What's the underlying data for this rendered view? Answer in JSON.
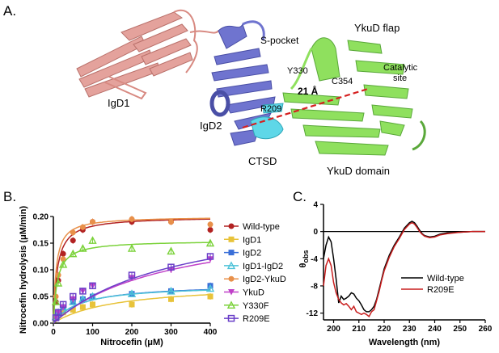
{
  "panelA": {
    "letter": "A.",
    "labels": {
      "igd1": "IgD1",
      "igd2": "IgD2",
      "ctsd": "CTSD",
      "spocket": "S-pocket",
      "ykud_flap": "YkuD flap",
      "ykud_domain": "YkuD domain",
      "y330": "Y330",
      "c354": "C354",
      "catalytic": "Catalytic",
      "site": "site",
      "r209": "R209",
      "distance": "21 Å"
    },
    "colors": {
      "igd1": "#e4a29c",
      "igd2": "#6f74cf",
      "ctsd": "#5ed7e8",
      "ykud": "#8fe05e",
      "distance_line": "#d62020"
    }
  },
  "panelB": {
    "letter": "B.",
    "chart_data": {
      "type": "scatter",
      "xlabel": "Nitrocefin (μM)",
      "ylabel": "Nitrocefin hydrolysis (μM/min)",
      "xlim": [
        0,
        400
      ],
      "ylim": [
        0,
        0.2
      ],
      "xticks": [
        "0",
        "100",
        "200",
        "300",
        "400"
      ],
      "yticks": [
        "0.00",
        "0.05",
        "0.10",
        "0.15",
        "0.20"
      ],
      "x": [
        6.25,
        12.5,
        25,
        50,
        75,
        100,
        200,
        300,
        400
      ],
      "series": [
        {
          "name": "Wild-type",
          "color": "#b22222",
          "marker": "circle",
          "values": [
            0.04,
            0.08,
            0.13,
            0.155,
            0.175,
            0.19,
            0.19,
            0.19,
            0.175
          ],
          "vmax": 0.2,
          "km": 10
        },
        {
          "name": "IgD1",
          "color": "#e8c33a",
          "marker": "square",
          "values": [
            0.01,
            0.015,
            0.02,
            0.025,
            0.03,
            0.035,
            0.035,
            0.045,
            0.05
          ],
          "vmax": 0.075,
          "km": 160
        },
        {
          "name": "IgD2",
          "color": "#3a6fd8",
          "marker": "square",
          "values": [
            0.012,
            0.02,
            0.03,
            0.04,
            0.045,
            0.05,
            0.055,
            0.06,
            0.07
          ],
          "vmax": 0.074,
          "km": 70
        },
        {
          "name": "IgD1-IgD2",
          "color": "#4dc2d8",
          "marker": "triangle",
          "values": [
            0.012,
            0.02,
            0.03,
            0.04,
            0.045,
            0.05,
            0.055,
            0.06,
            0.065
          ],
          "vmax": 0.072,
          "km": 65
        },
        {
          "name": "IgD2-YkuD",
          "color": "#e8904a",
          "marker": "circle",
          "values": [
            0.05,
            0.09,
            0.12,
            0.17,
            0.18,
            0.19,
            0.195,
            0.19,
            0.185
          ],
          "vmax": 0.2,
          "km": 7
        },
        {
          "name": "YkuD",
          "color": "#c040c8",
          "marker": "triangle-down",
          "values": [
            0.01,
            0.02,
            0.03,
            0.045,
            0.06,
            0.07,
            0.085,
            0.1,
            0.12
          ],
          "vmax": 0.2,
          "km": 300
        },
        {
          "name": "Y330F",
          "color": "#7bd23a",
          "marker": "triangle",
          "values": [
            0.04,
            0.075,
            0.11,
            0.13,
            0.14,
            0.155,
            0.14,
            0.135,
            0.15
          ],
          "vmax": 0.155,
          "km": 10
        },
        {
          "name": "R209E",
          "color": "#6a3fc8",
          "marker": "square-open",
          "values": [
            0.01,
            0.02,
            0.035,
            0.05,
            0.06,
            0.07,
            0.09,
            0.105,
            0.125
          ],
          "vmax": 0.22,
          "km": 330
        }
      ]
    }
  },
  "panelC": {
    "letter": "C.",
    "chart_data": {
      "type": "line",
      "xlabel": "Wavelength (nm)",
      "ylabel": "θobs",
      "ylabel_main": "θ",
      "ylabel_sub": "obs",
      "xlim": [
        196,
        260
      ],
      "ylim": [
        -13,
        4
      ],
      "xticks": [
        "200",
        "210",
        "220",
        "230",
        "240",
        "250",
        "260"
      ],
      "yticks": [
        "4",
        "0",
        "-4",
        "-8",
        "-12"
      ],
      "x": [
        196,
        197,
        198,
        199,
        200,
        201,
        202,
        203,
        204,
        205,
        206,
        207,
        208,
        209,
        210,
        211,
        212,
        213,
        214,
        215,
        216,
        217,
        218,
        219,
        220,
        222,
        224,
        226,
        228,
        230,
        231,
        232,
        233,
        234,
        235,
        236,
        238,
        240,
        242,
        245,
        250,
        255,
        260
      ],
      "series": [
        {
          "name": "Wild-type",
          "color": "#000000",
          "values": [
            -4,
            -2,
            -0.8,
            -1.5,
            -4,
            -7,
            -10.5,
            -9.5,
            -10,
            -9.8,
            -9.5,
            -9,
            -9.2,
            -9.8,
            -10.2,
            -10.8,
            -11.5,
            -11.8,
            -11.8,
            -11.5,
            -11,
            -10,
            -8.5,
            -7,
            -5.5,
            -3.5,
            -2,
            -0.8,
            0.5,
            1.3,
            1.5,
            1.3,
            0.8,
            0.2,
            -0.3,
            -0.6,
            -0.8,
            -0.7,
            -0.4,
            -0.2,
            -0.1,
            0,
            0
          ]
        },
        {
          "name": "R209E",
          "color": "#c81e1e",
          "values": [
            -8,
            -5,
            -4,
            -5,
            -7.5,
            -9,
            -10,
            -10.5,
            -10.8,
            -10.6,
            -11,
            -11.5,
            -11,
            -11.8,
            -12,
            -12.2,
            -12,
            -12.2,
            -12.5,
            -11.8,
            -11.5,
            -10.2,
            -8.8,
            -7.2,
            -5.8,
            -3.8,
            -2.2,
            -1,
            0.3,
            1.1,
            1.3,
            1.1,
            0.6,
            0,
            -0.4,
            -0.7,
            -0.9,
            -0.8,
            -0.5,
            -0.3,
            -0.1,
            0,
            0
          ]
        }
      ],
      "zero_line": true
    }
  }
}
